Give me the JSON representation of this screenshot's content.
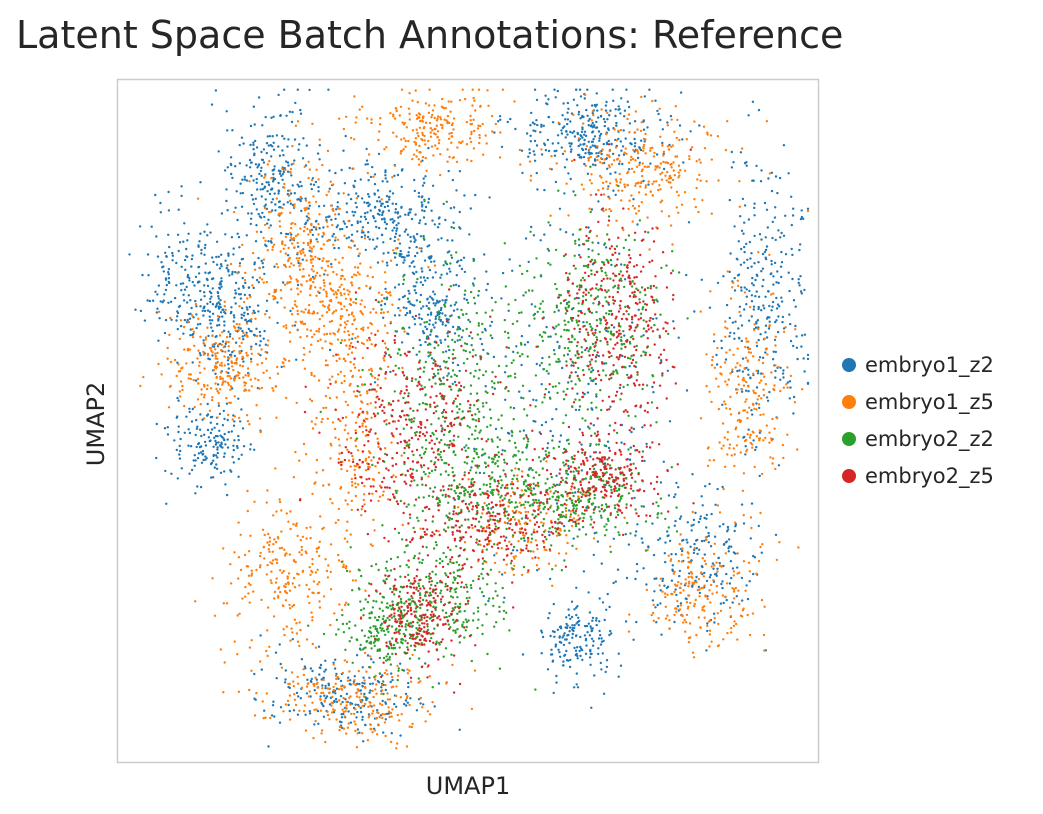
{
  "chart_data": {
    "type": "scatter",
    "title": "Latent Space Batch Annotations: Reference",
    "xlabel": "UMAP1",
    "ylabel": "UMAP2",
    "xlim": [
      0,
      10
    ],
    "ylim": [
      0,
      10
    ],
    "grid": false,
    "ticks": false,
    "legend_position": "right",
    "series": [
      {
        "name": "embryo1_z2",
        "color": "#1f77b4",
        "clusters": [
          {
            "cx": 1.6,
            "cy": 6.6,
            "sx": 0.35,
            "sy": 0.55,
            "n": 260
          },
          {
            "cx": 2.2,
            "cy": 8.5,
            "sx": 0.35,
            "sy": 0.6,
            "n": 260
          },
          {
            "cx": 3.8,
            "cy": 8.0,
            "sx": 0.6,
            "sy": 0.4,
            "n": 300
          },
          {
            "cx": 4.5,
            "cy": 6.7,
            "sx": 0.35,
            "sy": 0.45,
            "n": 220
          },
          {
            "cx": 6.8,
            "cy": 9.2,
            "sx": 0.55,
            "sy": 0.35,
            "n": 300
          },
          {
            "cx": 9.2,
            "cy": 6.8,
            "sx": 0.3,
            "sy": 1.0,
            "n": 300
          },
          {
            "cx": 8.3,
            "cy": 3.0,
            "sx": 0.45,
            "sy": 0.5,
            "n": 200
          },
          {
            "cx": 6.6,
            "cy": 1.8,
            "sx": 0.3,
            "sy": 0.3,
            "n": 160
          },
          {
            "cx": 3.2,
            "cy": 1.0,
            "sx": 0.6,
            "sy": 0.3,
            "n": 220
          },
          {
            "cx": 1.3,
            "cy": 4.7,
            "sx": 0.3,
            "sy": 0.3,
            "n": 160
          },
          {
            "cx": 0.9,
            "cy": 7.0,
            "sx": 0.3,
            "sy": 0.5,
            "n": 140
          },
          {
            "cx": 6.5,
            "cy": 5.5,
            "sx": 0.8,
            "sy": 1.6,
            "n": 300
          }
        ]
      },
      {
        "name": "embryo1_z5",
        "color": "#ff7f0e",
        "clusters": [
          {
            "cx": 1.5,
            "cy": 5.8,
            "sx": 0.45,
            "sy": 0.4,
            "n": 260
          },
          {
            "cx": 2.6,
            "cy": 7.5,
            "sx": 0.35,
            "sy": 0.7,
            "n": 260
          },
          {
            "cx": 3.3,
            "cy": 5.0,
            "sx": 0.35,
            "sy": 1.0,
            "n": 280
          },
          {
            "cx": 4.5,
            "cy": 9.3,
            "sx": 0.5,
            "sy": 0.3,
            "n": 220
          },
          {
            "cx": 7.5,
            "cy": 8.7,
            "sx": 0.55,
            "sy": 0.45,
            "n": 280
          },
          {
            "cx": 9.0,
            "cy": 5.3,
            "sx": 0.3,
            "sy": 0.8,
            "n": 220
          },
          {
            "cx": 8.3,
            "cy": 2.5,
            "sx": 0.4,
            "sy": 0.4,
            "n": 200
          },
          {
            "cx": 3.4,
            "cy": 0.9,
            "sx": 0.6,
            "sy": 0.3,
            "n": 240
          },
          {
            "cx": 2.4,
            "cy": 2.7,
            "sx": 0.45,
            "sy": 0.6,
            "n": 240
          },
          {
            "cx": 5.8,
            "cy": 3.5,
            "sx": 0.5,
            "sy": 0.4,
            "n": 160
          },
          {
            "cx": 3.2,
            "cy": 6.7,
            "sx": 0.4,
            "sy": 0.5,
            "n": 200
          }
        ]
      },
      {
        "name": "embryo2_z2",
        "color": "#2ca02c",
        "clusters": [
          {
            "cx": 4.7,
            "cy": 5.4,
            "sx": 0.55,
            "sy": 0.95,
            "n": 380
          },
          {
            "cx": 6.7,
            "cy": 6.5,
            "sx": 0.55,
            "sy": 0.75,
            "n": 380
          },
          {
            "cx": 6.6,
            "cy": 3.9,
            "sx": 0.5,
            "sy": 0.35,
            "n": 300
          },
          {
            "cx": 4.5,
            "cy": 2.4,
            "sx": 0.55,
            "sy": 0.45,
            "n": 300
          },
          {
            "cx": 3.8,
            "cy": 1.9,
            "sx": 0.3,
            "sy": 0.3,
            "n": 180
          },
          {
            "cx": 5.3,
            "cy": 4.0,
            "sx": 0.5,
            "sy": 0.4,
            "n": 240
          }
        ]
      },
      {
        "name": "embryo2_z5",
        "color": "#d62728",
        "clusters": [
          {
            "cx": 4.2,
            "cy": 4.8,
            "sx": 0.55,
            "sy": 0.75,
            "n": 360
          },
          {
            "cx": 7.1,
            "cy": 6.5,
            "sx": 0.45,
            "sy": 0.75,
            "n": 340
          },
          {
            "cx": 6.9,
            "cy": 4.2,
            "sx": 0.45,
            "sy": 0.35,
            "n": 260
          },
          {
            "cx": 4.3,
            "cy": 2.2,
            "sx": 0.3,
            "sy": 0.45,
            "n": 240
          },
          {
            "cx": 5.4,
            "cy": 3.5,
            "sx": 0.5,
            "sy": 0.3,
            "n": 220
          }
        ]
      }
    ]
  }
}
